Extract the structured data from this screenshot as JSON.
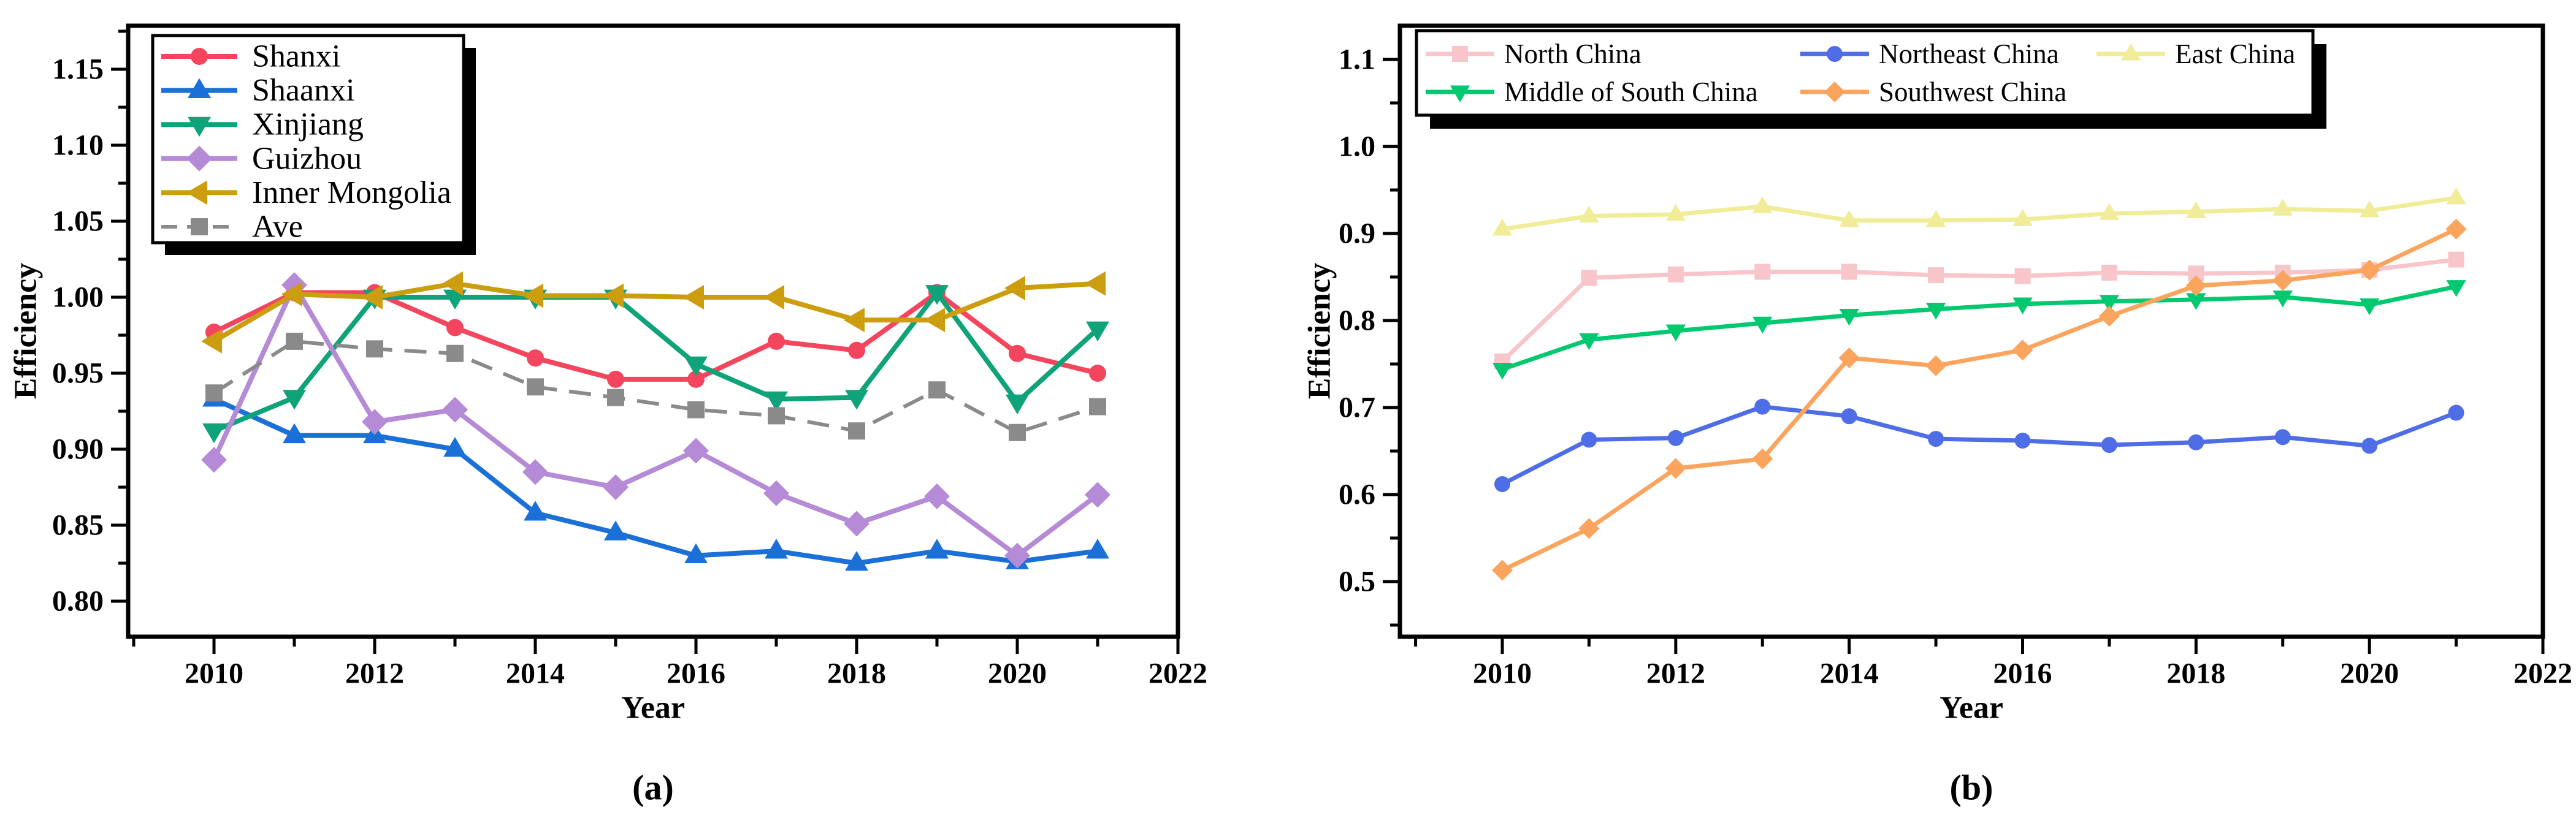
{
  "figure": {
    "background": "#FFFFFF"
  },
  "chart_data": [
    {
      "type": "line",
      "caption": "(a)",
      "xlabel": "Year",
      "ylabel": "Efficiency",
      "x": [
        2010,
        2011,
        2012,
        2013,
        2014,
        2015,
        2016,
        2017,
        2018,
        2019,
        2020,
        2021
      ],
      "xlim": [
        2009,
        2022
      ],
      "ylim": [
        0.777,
        1.179
      ],
      "xticks": {
        "major": [
          2010,
          2012,
          2014,
          2016,
          2018,
          2020,
          2022
        ],
        "labels": [
          "2010",
          "2012",
          "2014",
          "2016",
          "2018",
          "2020",
          "2022"
        ],
        "minor": [
          2009,
          2011,
          2013,
          2015,
          2017,
          2019,
          2021
        ]
      },
      "yticks": {
        "major": [
          1.15,
          1.1,
          1.05,
          1.0,
          0.95,
          0.9,
          0.85,
          0.8
        ],
        "labels": [
          "1.15",
          "1.10",
          "1.05",
          "1.00",
          "0.95",
          "0.90",
          "0.85",
          "0.80"
        ],
        "minor": [
          1.175,
          1.125,
          1.075,
          1.025,
          0.975,
          0.925,
          0.875,
          0.825
        ]
      },
      "grid": false,
      "legend": {
        "position": "top-left",
        "columns": 1
      },
      "series": [
        {
          "name": "Shanxi",
          "color": "#F4455E",
          "marker": "circle",
          "line_style": "solid",
          "values": [
            0.977,
            1.003,
            1.003,
            0.98,
            0.96,
            0.946,
            0.946,
            0.971,
            0.965,
            1.003,
            0.963,
            0.95
          ]
        },
        {
          "name": "Shaanxi",
          "color": "#1B70D8",
          "marker": "triangle-up",
          "line_style": "solid",
          "values": [
            0.933,
            0.909,
            0.909,
            0.9,
            0.858,
            0.845,
            0.83,
            0.833,
            0.825,
            0.833,
            0.826,
            0.833
          ]
        },
        {
          "name": "Xinjiang",
          "color": "#0EA379",
          "marker": "triangle-down",
          "line_style": "solid",
          "values": [
            0.912,
            0.934,
            1.0,
            1.0,
            1.0,
            1.0,
            0.956,
            0.933,
            0.934,
            1.003,
            0.931,
            0.979
          ]
        },
        {
          "name": "Guizhou",
          "color": "#B58AD6",
          "marker": "diamond",
          "line_style": "solid",
          "values": [
            0.893,
            1.008,
            0.918,
            0.926,
            0.885,
            0.875,
            0.899,
            0.871,
            0.851,
            0.869,
            0.83,
            0.87
          ]
        },
        {
          "name": "Inner Mongolia",
          "color": "#CB9D0F",
          "marker": "triangle-left",
          "line_style": "solid",
          "values": [
            0.971,
            1.002,
            1.0,
            1.009,
            1.001,
            1.001,
            1.0,
            1.0,
            0.985,
            0.985,
            1.006,
            1.009
          ]
        },
        {
          "name": "Ave",
          "color": "#8A8A8A",
          "marker": "square",
          "line_style": "dashed",
          "values": [
            0.937,
            0.971,
            0.966,
            0.963,
            0.941,
            0.934,
            0.926,
            0.922,
            0.912,
            0.939,
            0.911,
            0.928
          ]
        }
      ]
    },
    {
      "type": "line",
      "caption": "(b)",
      "xlabel": "Year",
      "ylabel": "Efficiency",
      "x": [
        2010,
        2011,
        2012,
        2013,
        2014,
        2015,
        2016,
        2017,
        2018,
        2019,
        2020,
        2021
      ],
      "xlim": [
        2009,
        2022
      ],
      "ylim": [
        0.44,
        1.13
      ],
      "xticks": {
        "major": [
          2010,
          2012,
          2014,
          2016,
          2018,
          2020,
          2022
        ],
        "labels": [
          "2010",
          "2012",
          "2014",
          "2016",
          "2018",
          "2020",
          "2022"
        ],
        "minor": [
          2009,
          2011,
          2013,
          2015,
          2017,
          2019,
          2021
        ]
      },
      "yticks": {
        "major": [
          1.1,
          1.0,
          0.9,
          0.8,
          0.7,
          0.6,
          0.5
        ],
        "labels": [
          "1.1",
          "1.0",
          "0.9",
          "0.8",
          "0.7",
          "0.6",
          "0.5"
        ],
        "minor": [
          1.05,
          0.95,
          0.85,
          0.75,
          0.65,
          0.55,
          0.45
        ]
      },
      "grid": false,
      "legend": {
        "position": "top",
        "columns": 3
      },
      "series": [
        {
          "name": "North China",
          "color": "#F8C5CA",
          "marker": "square",
          "line_style": "solid",
          "values": [
            0.753,
            0.849,
            0.853,
            0.856,
            0.856,
            0.852,
            0.851,
            0.855,
            0.854,
            0.855,
            0.858,
            0.87
          ]
        },
        {
          "name": "Northeast China",
          "color": "#4E6DE6",
          "marker": "circle",
          "line_style": "solid",
          "values": [
            0.612,
            0.663,
            0.665,
            0.701,
            0.69,
            0.664,
            0.662,
            0.657,
            0.66,
            0.666,
            0.656,
            0.694
          ]
        },
        {
          "name": "East China",
          "color": "#F1EC97",
          "marker": "triangle-up",
          "line_style": "solid",
          "values": [
            0.905,
            0.92,
            0.922,
            0.931,
            0.915,
            0.915,
            0.916,
            0.923,
            0.925,
            0.928,
            0.926,
            0.941
          ]
        },
        {
          "name": "Middle of South China",
          "color": "#02C96F",
          "marker": "triangle-down",
          "line_style": "solid",
          "values": [
            0.744,
            0.778,
            0.788,
            0.797,
            0.806,
            0.813,
            0.819,
            0.822,
            0.824,
            0.827,
            0.818,
            0.839
          ]
        },
        {
          "name": "Southwest China",
          "color": "#FAA45E",
          "marker": "diamond",
          "line_style": "solid",
          "values": [
            0.513,
            0.561,
            0.63,
            0.641,
            0.757,
            0.748,
            0.766,
            0.805,
            0.84,
            0.846,
            0.858,
            0.905
          ]
        }
      ]
    }
  ]
}
